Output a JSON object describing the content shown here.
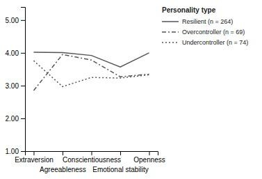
{
  "chart_data": {
    "type": "line",
    "title": "Personality type",
    "categories": [
      "Extraversion",
      "Agreeableness",
      "Conscientiousness",
      "Emotional stability",
      "Openness"
    ],
    "series": [
      {
        "name": "Resilient (n = 264)",
        "color": "#555555",
        "line_style": "solid",
        "values": [
          4.02,
          4.01,
          3.92,
          3.57,
          4.0
        ]
      },
      {
        "name": "Overcontroller (n = 69)",
        "color": "#555555",
        "line_style": "dashdot",
        "values": [
          2.85,
          3.95,
          3.78,
          3.27,
          3.35
        ]
      },
      {
        "name": "Undercontroller (n = 74)",
        "color": "#555555",
        "line_style": "dotted",
        "values": [
          3.76,
          2.97,
          3.25,
          3.23,
          3.33
        ]
      }
    ],
    "ylim": [
      1.0,
      5.4
    ],
    "yticks": [
      {
        "value": 1.0,
        "label": "1.00"
      },
      {
        "value": 2.0,
        "label": "2.00"
      },
      {
        "value": 3.0,
        "label": "3.00"
      },
      {
        "value": 4.0,
        "label": "4.00"
      },
      {
        "value": 5.0,
        "label": "5.00"
      }
    ],
    "grid": false,
    "legend": "right"
  }
}
